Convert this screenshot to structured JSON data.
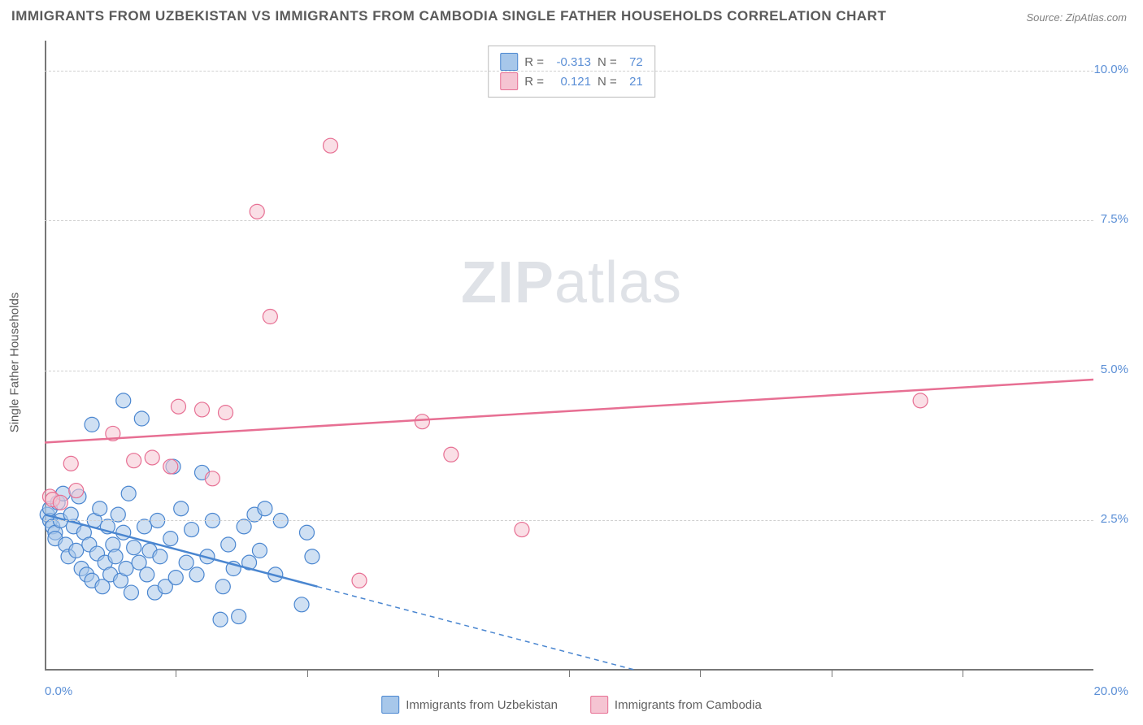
{
  "title": "IMMIGRANTS FROM UZBEKISTAN VS IMMIGRANTS FROM CAMBODIA SINGLE FATHER HOUSEHOLDS CORRELATION CHART",
  "source": "Source: ZipAtlas.com",
  "watermark_zip": "ZIP",
  "watermark_atlas": "atlas",
  "y_label": "Single Father Households",
  "chart": {
    "type": "scatter",
    "xlim": [
      0,
      20
    ],
    "ylim": [
      0,
      10.5
    ],
    "y_ticks": [
      2.5,
      5.0,
      7.5,
      10.0
    ],
    "y_tick_labels": [
      "2.5%",
      "5.0%",
      "7.5%",
      "10.0%"
    ],
    "x_tick_left": "0.0%",
    "x_tick_right": "20.0%",
    "x_minor_ticks": [
      2.5,
      5.0,
      7.5,
      10.0,
      12.5,
      15.0,
      17.5
    ],
    "background_color": "#ffffff",
    "grid_color": "#d0d0d0",
    "marker_radius": 9,
    "marker_opacity": 0.55,
    "series": [
      {
        "name": "Immigrants from Uzbekistan",
        "color_fill": "#a7c7ea",
        "color_stroke": "#4a86d0",
        "r": "-0.313",
        "n": "72",
        "trend_solid": {
          "x1": 0,
          "y1": 2.6,
          "x2": 5.2,
          "y2": 1.4
        },
        "trend_dashed": {
          "x1": 5.2,
          "y1": 1.4,
          "x2": 11.3,
          "y2": 0
        },
        "trend_color": "#4a86d0",
        "points": [
          [
            0.05,
            2.6
          ],
          [
            0.1,
            2.5
          ],
          [
            0.15,
            2.4
          ],
          [
            0.2,
            2.3
          ],
          [
            0.1,
            2.7
          ],
          [
            0.2,
            2.2
          ],
          [
            0.3,
            2.5
          ],
          [
            0.25,
            2.8
          ],
          [
            0.35,
            2.95
          ],
          [
            0.4,
            2.1
          ],
          [
            0.45,
            1.9
          ],
          [
            0.55,
            2.4
          ],
          [
            0.6,
            2.0
          ],
          [
            0.5,
            2.6
          ],
          [
            0.7,
            1.7
          ],
          [
            0.65,
            2.9
          ],
          [
            0.8,
            1.6
          ],
          [
            0.75,
            2.3
          ],
          [
            0.9,
            1.5
          ],
          [
            0.85,
            2.1
          ],
          [
            0.95,
            2.5
          ],
          [
            1.0,
            1.95
          ],
          [
            1.1,
            1.4
          ],
          [
            1.05,
            2.7
          ],
          [
            1.15,
            1.8
          ],
          [
            1.2,
            2.4
          ],
          [
            1.25,
            1.6
          ],
          [
            1.3,
            2.1
          ],
          [
            1.35,
            1.9
          ],
          [
            1.4,
            2.6
          ],
          [
            1.45,
            1.5
          ],
          [
            1.5,
            2.3
          ],
          [
            1.55,
            1.7
          ],
          [
            1.6,
            2.95
          ],
          [
            1.65,
            1.3
          ],
          [
            1.7,
            2.05
          ],
          [
            1.5,
            4.5
          ],
          [
            1.8,
            1.8
          ],
          [
            1.85,
            4.2
          ],
          [
            1.9,
            2.4
          ],
          [
            1.95,
            1.6
          ],
          [
            2.0,
            2.0
          ],
          [
            0.9,
            4.1
          ],
          [
            2.1,
            1.3
          ],
          [
            2.15,
            2.5
          ],
          [
            2.2,
            1.9
          ],
          [
            2.3,
            1.4
          ],
          [
            2.4,
            2.2
          ],
          [
            2.5,
            1.55
          ],
          [
            2.6,
            2.7
          ],
          [
            2.7,
            1.8
          ],
          [
            2.8,
            2.35
          ],
          [
            2.9,
            1.6
          ],
          [
            3.0,
            3.3
          ],
          [
            3.1,
            1.9
          ],
          [
            3.2,
            2.5
          ],
          [
            2.45,
            3.4
          ],
          [
            3.4,
            1.4
          ],
          [
            3.5,
            2.1
          ],
          [
            3.6,
            1.7
          ],
          [
            3.7,
            0.9
          ],
          [
            3.8,
            2.4
          ],
          [
            3.9,
            1.8
          ],
          [
            4.0,
            2.6
          ],
          [
            4.1,
            2.0
          ],
          [
            4.2,
            2.7
          ],
          [
            3.35,
            0.85
          ],
          [
            4.4,
            1.6
          ],
          [
            4.5,
            2.5
          ],
          [
            4.9,
            1.1
          ],
          [
            5.0,
            2.3
          ],
          [
            5.1,
            1.9
          ]
        ]
      },
      {
        "name": "Immigrants from Cambodia",
        "color_fill": "#f5c4d2",
        "color_stroke": "#e76f93",
        "r": "0.121",
        "n": "21",
        "trend_solid": {
          "x1": 0,
          "y1": 3.8,
          "x2": 20,
          "y2": 4.85
        },
        "trend_color": "#e76f93",
        "points": [
          [
            0.1,
            2.9
          ],
          [
            0.15,
            2.85
          ],
          [
            0.3,
            2.8
          ],
          [
            0.5,
            3.45
          ],
          [
            0.6,
            3.0
          ],
          [
            1.3,
            3.95
          ],
          [
            1.7,
            3.5
          ],
          [
            2.05,
            3.55
          ],
          [
            2.4,
            3.4
          ],
          [
            2.55,
            4.4
          ],
          [
            3.0,
            4.35
          ],
          [
            3.2,
            3.2
          ],
          [
            3.45,
            4.3
          ],
          [
            4.3,
            5.9
          ],
          [
            4.05,
            7.65
          ],
          [
            5.45,
            8.75
          ],
          [
            6.0,
            1.5
          ],
          [
            7.2,
            4.15
          ],
          [
            7.75,
            3.6
          ],
          [
            9.1,
            2.35
          ],
          [
            16.7,
            4.5
          ]
        ]
      }
    ]
  },
  "legend_labels": {
    "r": "R =",
    "n": "N ="
  }
}
